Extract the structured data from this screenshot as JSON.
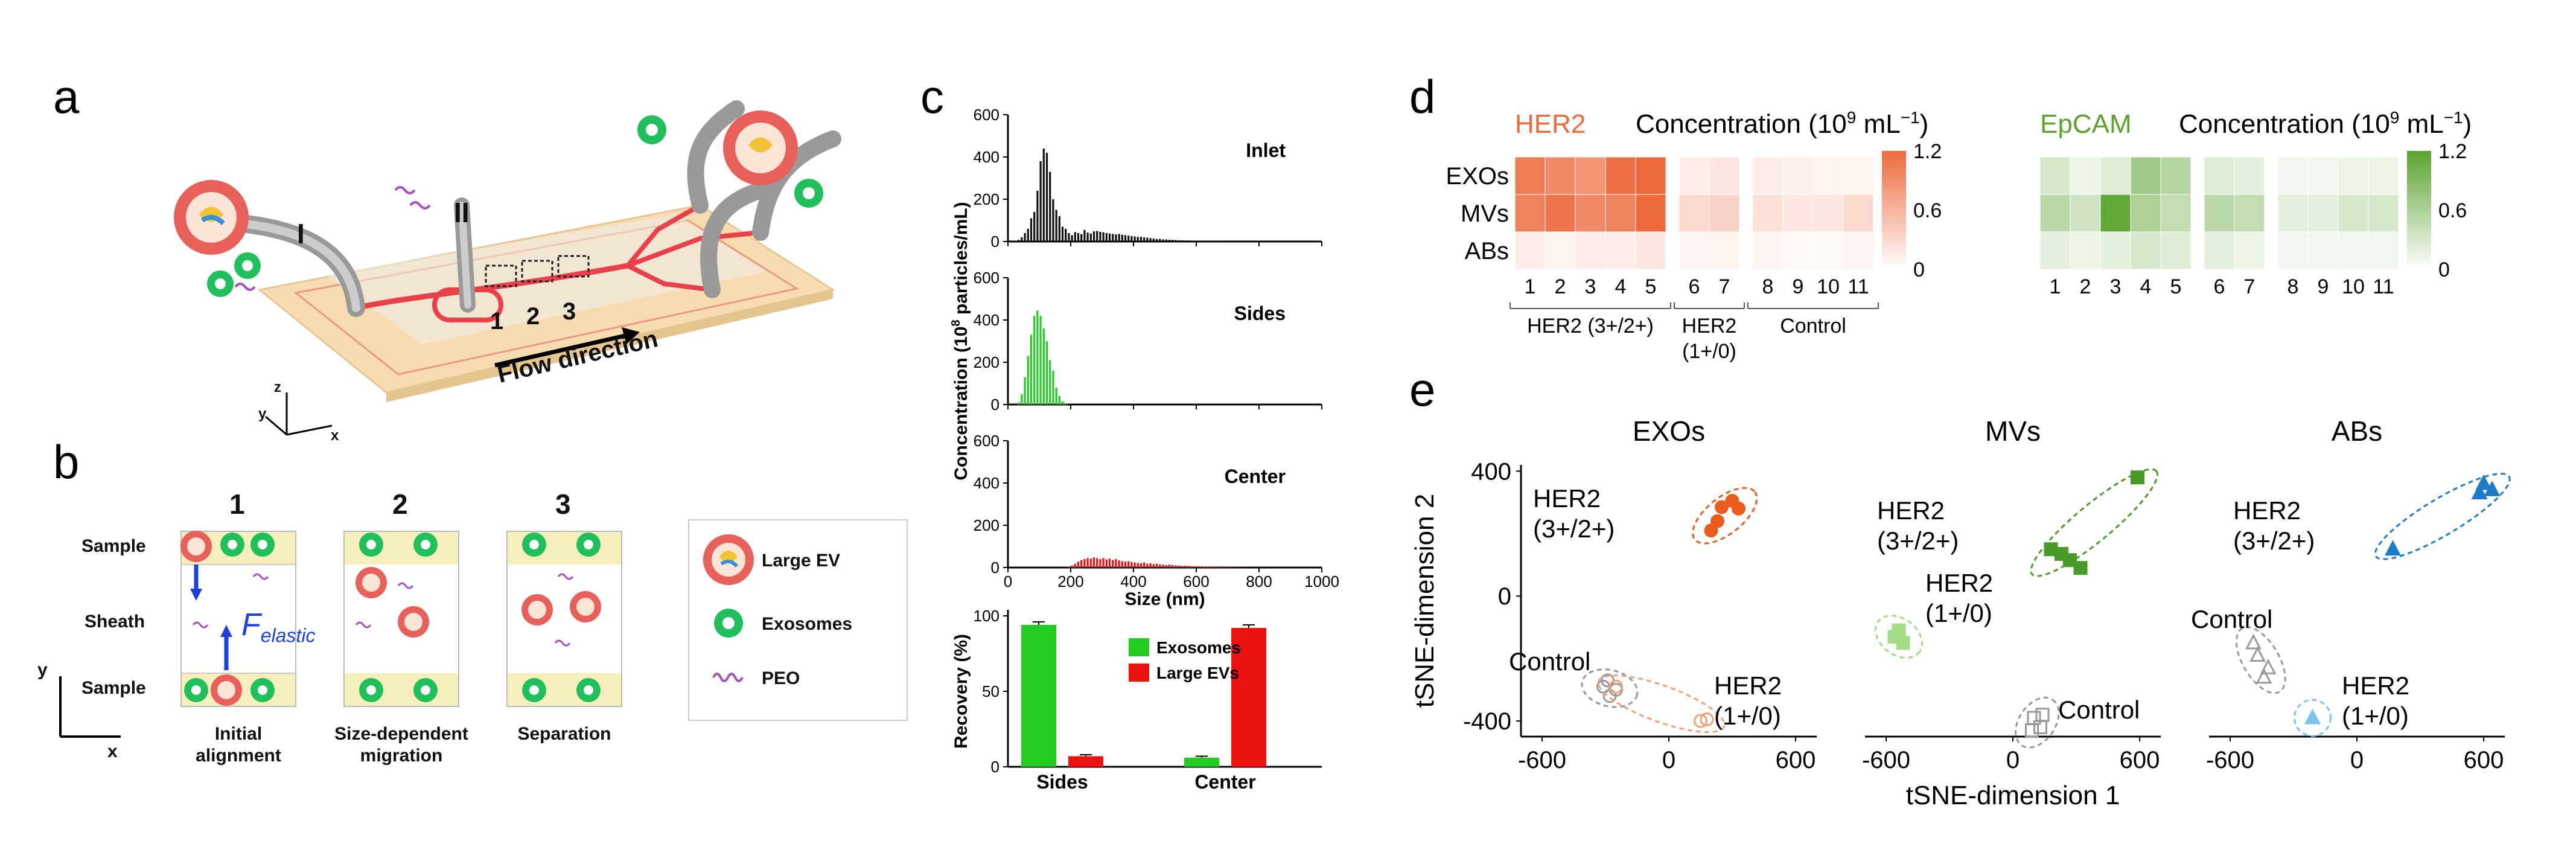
{
  "panel_labels": {
    "a": "a",
    "b": "b",
    "c": "c",
    "d": "d",
    "e": "e"
  },
  "panel_a": {
    "inlet_1": "I",
    "inlet_2": "II",
    "zones": [
      "1",
      "2",
      "3"
    ],
    "flow_direction": "Flow direction",
    "axes": {
      "x": "x",
      "y": "y",
      "z": "z"
    }
  },
  "panel_b": {
    "steps": [
      "1",
      "2",
      "3"
    ],
    "row_labels": {
      "top": "Sample",
      "middle": "Sheath",
      "bottom": "Sample"
    },
    "force_symbol": "F",
    "force_subscript": "elastic",
    "step_captions": [
      {
        "line1": "Initial",
        "line2": "alignment"
      },
      {
        "line1": "Size-dependent",
        "line2": "migration"
      },
      {
        "line1": "Separation",
        "line2": ""
      }
    ],
    "axes": {
      "x": "x",
      "y": "y"
    },
    "legend": [
      {
        "label": "Large EV",
        "icon": "large-ev-icon"
      },
      {
        "label": "Exosomes",
        "icon": "exosome-icon"
      },
      {
        "label": "PEO",
        "icon": "peo-polymer-icon"
      }
    ],
    "colors": {
      "large_ev": "#e8605a",
      "exosome": "#1fbf5c",
      "peo": "#a24fc0",
      "channel": "#f6eebb",
      "arrow": "#1c3fe0"
    }
  },
  "chart_data": [
    {
      "id": "c-histograms",
      "type": "bar",
      "ylabel": "Concentration (10^8 particles/mL)",
      "ylabel_parts": {
        "pre": "Concentration (10",
        "sup": "8",
        "post": " particles/mL)"
      },
      "xlabel": "Size (nm)",
      "x_ticks": [
        "0",
        "200",
        "400",
        "600",
        "800",
        "1000"
      ],
      "xlim": [
        0,
        1000
      ],
      "ylim": [
        0,
        600
      ],
      "y_ticks": [
        "0",
        "200",
        "400",
        "600"
      ],
      "bin_width_nm": 10,
      "panels": [
        {
          "name": "Inlet",
          "color": "#111111",
          "values": [
            0,
            0,
            0,
            8,
            20,
            40,
            60,
            110,
            140,
            240,
            380,
            440,
            420,
            330,
            200,
            150,
            120,
            70,
            60,
            40,
            30,
            45,
            40,
            35,
            55,
            42,
            38,
            48,
            50,
            46,
            44,
            40,
            38,
            36,
            34,
            36,
            32,
            30,
            28,
            26,
            24,
            22,
            22,
            20,
            18,
            16,
            14,
            12,
            12,
            10,
            10,
            8,
            8,
            7,
            6,
            6,
            5,
            5,
            4,
            4,
            3,
            3,
            3,
            2,
            2,
            2,
            2,
            2,
            1,
            1,
            1,
            1,
            1,
            0,
            0,
            0,
            0,
            0,
            0,
            0,
            0
          ]
        },
        {
          "name": "Sides",
          "color": "#22cc22",
          "values": [
            0,
            0,
            0,
            10,
            50,
            130,
            230,
            330,
            420,
            445,
            420,
            360,
            300,
            210,
            160,
            80,
            40,
            15,
            5,
            0,
            0,
            0,
            0,
            0,
            0,
            0,
            0,
            0,
            0,
            0,
            0,
            0,
            0,
            0,
            0,
            0,
            0,
            0,
            0,
            0,
            0,
            0,
            0,
            0,
            0,
            0,
            0,
            0,
            0,
            0,
            0,
            0,
            0,
            0,
            0,
            0,
            0,
            0,
            0,
            0,
            0,
            0,
            0,
            0,
            0,
            0,
            0,
            0,
            0,
            0,
            0,
            0,
            0,
            0,
            0,
            0,
            0,
            0,
            0,
            0,
            0
          ]
        },
        {
          "name": "Center",
          "color": "#ee1111",
          "values": [
            0,
            0,
            0,
            0,
            0,
            0,
            0,
            0,
            0,
            0,
            0,
            0,
            0,
            0,
            0,
            0,
            0,
            0,
            0,
            5,
            10,
            18,
            28,
            35,
            40,
            45,
            42,
            48,
            44,
            40,
            45,
            38,
            42,
            36,
            40,
            34,
            30,
            28,
            30,
            26,
            24,
            22,
            20,
            24,
            18,
            20,
            16,
            18,
            15,
            14,
            12,
            14,
            12,
            10,
            10,
            8,
            9,
            8,
            6,
            6,
            5,
            5,
            4,
            4,
            3,
            3,
            3,
            2,
            2,
            2,
            2,
            1,
            1,
            1,
            1,
            0,
            0,
            0,
            0,
            0,
            0
          ]
        }
      ]
    },
    {
      "id": "c-recovery",
      "type": "bar",
      "ylabel": "Recovery (%)",
      "categories": [
        "Sides",
        "Center"
      ],
      "ylim": [
        0,
        100
      ],
      "y_ticks": [
        "0",
        "50",
        "100"
      ],
      "series": [
        {
          "name": "Exosomes",
          "color": "#22cc22",
          "values": [
            94,
            6
          ]
        },
        {
          "name": "Large EVs",
          "color": "#ee1111",
          "values": [
            7,
            92
          ]
        }
      ],
      "errors": [
        [
          2,
          1
        ],
        [
          1,
          2
        ]
      ],
      "legend_position": "top-right"
    },
    {
      "id": "d-heatmaps",
      "type": "heatmap",
      "rows": [
        "EXOs",
        "MVs",
        "ABs"
      ],
      "columns": [
        "1",
        "2",
        "3",
        "4",
        "5",
        "6",
        "7",
        "8",
        "9",
        "10",
        "11"
      ],
      "column_groups": [
        {
          "label": "HER2 (3+/2+)",
          "line2": "",
          "cols": [
            1,
            5
          ]
        },
        {
          "label": "HER2",
          "line2": "(1+/0)",
          "cols": [
            6,
            7
          ]
        },
        {
          "label": "Control",
          "line2": "",
          "cols": [
            8,
            11
          ]
        }
      ],
      "colorbar_ticks": [
        "0",
        "0.6",
        "1.2"
      ],
      "vmin": 0,
      "vmax": 1.2,
      "maps": [
        {
          "marker": "HER2",
          "title": "Concentration",
          "unit_pre": "(10",
          "unit_sup": "9",
          "unit_mid": " mL",
          "unit_sup2": "−1",
          "unit_post": ")",
          "color": "#ec6a3c",
          "values": [
            [
              1.05,
              0.95,
              0.85,
              1.15,
              1.2,
              0.15,
              0.2,
              0.15,
              0.12,
              0.1,
              0.1
            ],
            [
              1.0,
              1.1,
              0.95,
              1.0,
              1.2,
              0.3,
              0.35,
              0.25,
              0.2,
              0.2,
              0.3
            ],
            [
              0.15,
              0.1,
              0.15,
              0.15,
              0.2,
              0.08,
              0.1,
              0.08,
              0.05,
              0.05,
              0.08
            ]
          ]
        },
        {
          "marker": "EpCAM",
          "title": "Concentration",
          "unit_pre": "(10",
          "unit_sup": "9",
          "unit_mid": " mL",
          "unit_sup2": "−1",
          "unit_post": ")",
          "color": "#5ba32e",
          "values": [
            [
              0.3,
              0.15,
              0.25,
              0.7,
              0.55,
              0.25,
              0.2,
              0.1,
              0.1,
              0.15,
              0.15
            ],
            [
              0.5,
              0.35,
              1.15,
              0.6,
              0.45,
              0.5,
              0.45,
              0.2,
              0.2,
              0.3,
              0.3
            ],
            [
              0.2,
              0.15,
              0.2,
              0.3,
              0.25,
              0.2,
              0.15,
              0.1,
              0.1,
              0.1,
              0.1
            ]
          ]
        }
      ]
    },
    {
      "id": "e-tsne",
      "type": "scatter",
      "xlabel": "tSNE-dimension 1",
      "ylabel": "tSNE-dimension 2",
      "xlim": [
        -700,
        700
      ],
      "ylim": [
        -450,
        420
      ],
      "x_ticks": [
        "-600",
        "0",
        "600"
      ],
      "y_ticks": [
        "400",
        "0",
        "-400"
      ],
      "panels": [
        {
          "title": "EXOs",
          "groups": [
            {
              "label": "HER2",
              "label2": "(3+/2+)",
              "color": "#ec5a1e",
              "marker": "circle",
              "filled": true,
              "points": [
                [
                  200,
                  210
                ],
                [
                  250,
                  285
                ],
                [
                  300,
                  305
                ],
                [
                  330,
                  280
                ],
                [
                  230,
                  240
                ]
              ]
            },
            {
              "label": "Control",
              "label2": "",
              "color": "#999999",
              "marker": "circle",
              "filled": false,
              "points": [
                [
                  -310,
                  -290
                ],
                [
                  -280,
                  -320
                ],
                [
                  -250,
                  -300
                ],
                [
                  -290,
                  -270
                ]
              ]
            },
            {
              "label": "HER2",
              "label2": "(1+/0)",
              "color": "#f2a07a",
              "marker": "circle",
              "filled": false,
              "points": [
                [
                  -250,
                  -290
                ],
                [
                  150,
                  -400
                ],
                [
                  180,
                  -395
                ]
              ]
            }
          ]
        },
        {
          "title": "MVs",
          "groups": [
            {
              "label": "HER2",
              "label2": "(3+/2+)",
              "color": "#4a9a2a",
              "marker": "square",
              "filled": true,
              "points": [
                [
                  590,
                  380
                ],
                [
                  180,
                  150
                ],
                [
                  230,
                  135
                ],
                [
                  270,
                  115
                ],
                [
                  320,
                  90
                ]
              ]
            },
            {
              "label": "HER2",
              "label2": "(1+/0)",
              "color": "#a3dd88",
              "marker": "square",
              "filled": true,
              "points": [
                [
                  -560,
                  -130
                ],
                [
                  -540,
                  -110
                ],
                [
                  -520,
                  -150
                ]
              ]
            },
            {
              "label": "Control",
              "label2": "",
              "color": "#999999",
              "marker": "square",
              "filled": false,
              "points": [
                [
                  100,
                  -390
                ],
                [
                  130,
                  -420
                ],
                [
                  90,
                  -430
                ],
                [
                  140,
                  -380
                ]
              ]
            }
          ]
        },
        {
          "title": "ABs",
          "groups": [
            {
              "label": "HER2",
              "label2": "(3+/2+)",
              "color": "#1f7ac8",
              "marker": "triangle",
              "filled": true,
              "points": [
                [
                  600,
                  360
                ],
                [
                  640,
                  340
                ],
                [
                  580,
                  330
                ],
                [
                  170,
                  150
                ]
              ]
            },
            {
              "label": "Control",
              "label2": "",
              "color": "#999999",
              "marker": "triangle",
              "filled": false,
              "points": [
                [
                  -490,
                  -150
                ],
                [
                  -470,
                  -190
                ],
                [
                  -420,
                  -230
                ],
                [
                  -440,
                  -260
                ]
              ]
            },
            {
              "label": "HER2",
              "label2": "(1+/0)",
              "color": "#7cc3ec",
              "marker": "triangle",
              "filled": true,
              "points": [
                [
                  -210,
                  -390
                ]
              ]
            }
          ]
        }
      ]
    }
  ]
}
